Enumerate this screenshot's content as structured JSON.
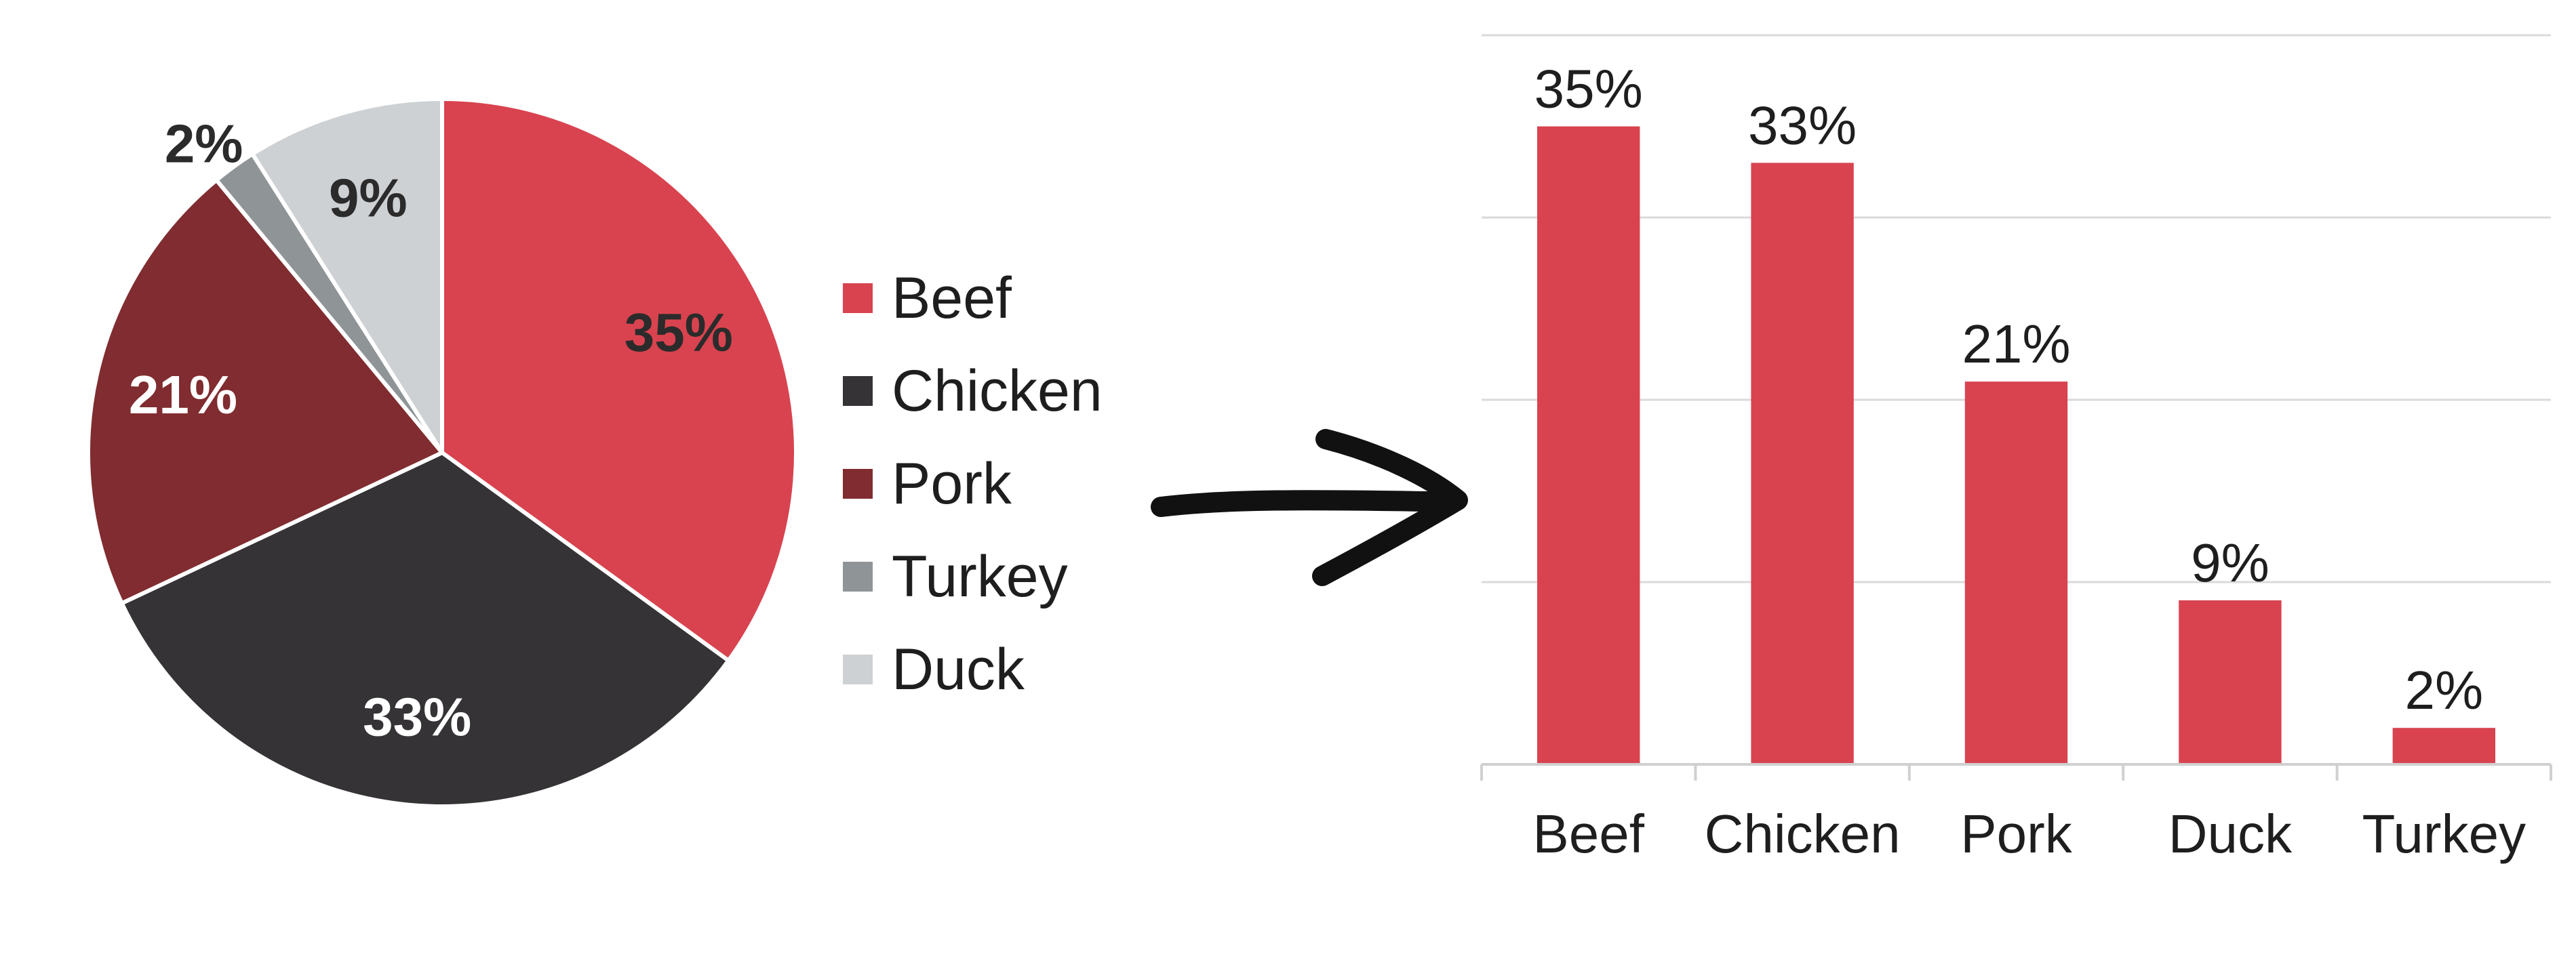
{
  "chart_data": [
    {
      "type": "pie",
      "title": "",
      "slices": [
        {
          "label": "Beef",
          "value": 35,
          "value_label": "35%",
          "color": "#d8434f",
          "label_color": "#2b2b2b"
        },
        {
          "label": "Chicken",
          "value": 33,
          "value_label": "33%",
          "color": "#353335",
          "label_color": "#ffffff"
        },
        {
          "label": "Pork",
          "value": 21,
          "value_label": "21%",
          "color": "#802c30",
          "label_color": "#ffffff"
        },
        {
          "label": "Turkey",
          "value": 2,
          "value_label": "2%",
          "color": "#8f9597",
          "label_color": "#2b2b2b"
        },
        {
          "label": "Duck",
          "value": 9,
          "value_label": "9%",
          "color": "#cdd1d3",
          "label_color": "#2b2b2b"
        }
      ],
      "legend": {
        "placement": "right",
        "entries": [
          "Beef",
          "Chicken",
          "Pork",
          "Turkey",
          "Duck"
        ]
      }
    },
    {
      "type": "bar",
      "title": "",
      "categories": [
        "Beef",
        "Chicken",
        "Pork",
        "Duck",
        "Turkey"
      ],
      "values": [
        35,
        33,
        21,
        9,
        2
      ],
      "value_labels": [
        "35%",
        "33%",
        "21%",
        "9%",
        "2%"
      ],
      "bar_color": "#d8434f",
      "ylim": [
        0,
        40
      ],
      "grid": true,
      "xlabel": "",
      "ylabel": ""
    }
  ],
  "arrow": {
    "icon": "arrow-right-icon",
    "color": "#111111"
  }
}
